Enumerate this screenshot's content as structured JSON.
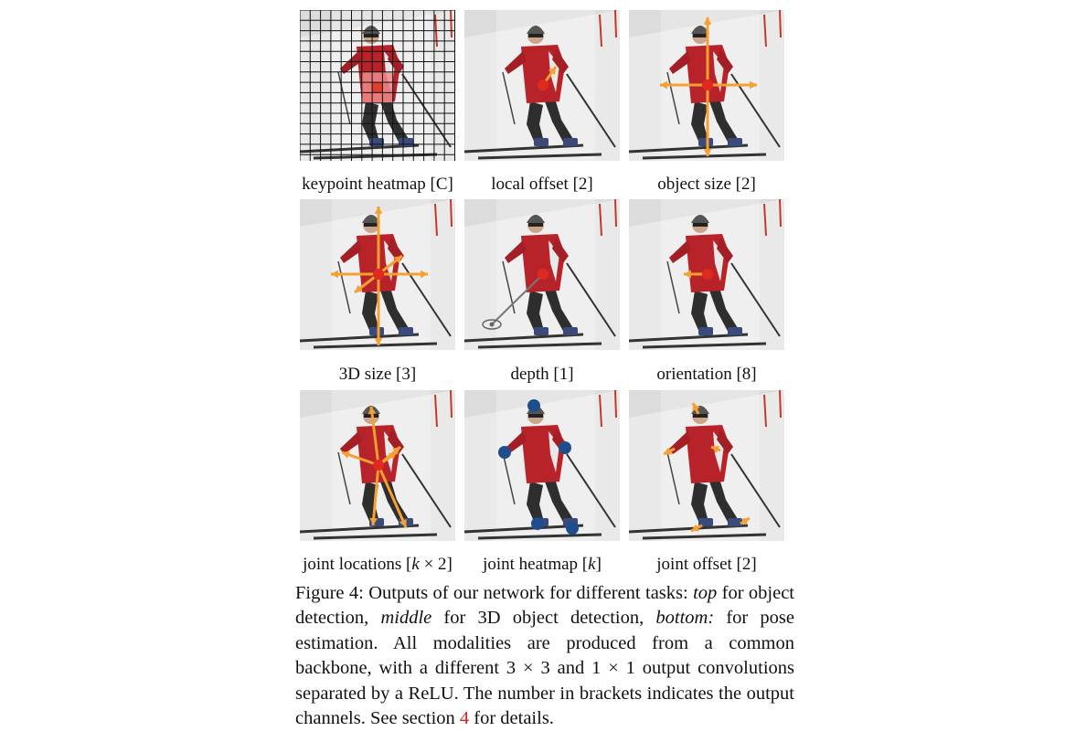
{
  "panels": [
    {
      "label": "keypoint heatmap [C]",
      "overlay": "heatmap"
    },
    {
      "label": "local offset [2]",
      "overlay": "offset"
    },
    {
      "label": "object size [2]",
      "overlay": "size"
    },
    {
      "label": "3D size [3]",
      "overlay": "size3d"
    },
    {
      "label": "depth [1]",
      "overlay": "depth"
    },
    {
      "label": "orientation [8]",
      "overlay": "orientation"
    },
    {
      "label_prefix": "joint locations [",
      "label_math": "k",
      "label_mid": " × 2",
      "label_suffix": "]",
      "overlay": "joints"
    },
    {
      "label_prefix": "joint heatmap [",
      "label_math": "k",
      "label_mid": "",
      "label_suffix": "]",
      "overlay": "jointheat"
    },
    {
      "label": "joint offset [2]",
      "overlay": "jointoffset"
    }
  ],
  "caption": {
    "part1": "Figure 4: Outputs of our network for different tasks: ",
    "em1": "top",
    "part2": " for object detection, ",
    "em2": "middle",
    "part3": " for 3D object detection, ",
    "em3": "bottom:",
    "part4": " for pose estimation. All modalities are produced from a common backbone, with a different 3 × 3 and 1 × 1 output convolutions separated by a ReLU. The number in brackets indicates the output channels. See section ",
    "ref": "4",
    "part5": " for details."
  },
  "colors": {
    "arrow": "#f5a030",
    "center": "#e02a20",
    "joint": "#1f4e8c",
    "heat": "#f08a8a",
    "heat_core": "#e0402a"
  }
}
